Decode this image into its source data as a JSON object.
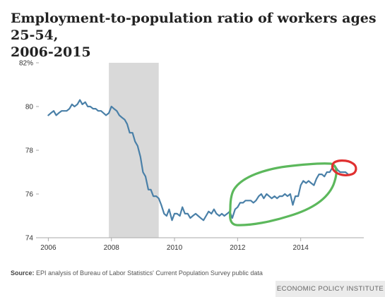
{
  "title": "Employment-to-population ratio of workers ages 25-54,\n2006-2015",
  "source": {
    "label": "Source:",
    "text": "EPI analysis of  Bureau of Labor Statistics' Current Population Survey public data"
  },
  "brand": "ECONOMIC POLICY INSTITUTE",
  "colors": {
    "line": "#4a80a8",
    "recession": "#d9d9d9",
    "axis": "#aaaaaa",
    "annotation_green": "#5cb85c",
    "annotation_red": "#e03030"
  },
  "chart_data": {
    "type": "line",
    "title": "Employment-to-population ratio of workers ages 25-54, 2006-2015",
    "xlabel": "",
    "ylabel": "",
    "xlim": [
      2005.7,
      2016.0
    ],
    "ylim": [
      74,
      82
    ],
    "x_ticks": [
      2006,
      2008,
      2010,
      2012,
      2014
    ],
    "y_ticks": [
      {
        "value": 74,
        "label": "74"
      },
      {
        "value": 76,
        "label": "76"
      },
      {
        "value": 78,
        "label": "78"
      },
      {
        "value": 80,
        "label": "80"
      },
      {
        "value": 82,
        "label": "82%"
      }
    ],
    "grid": false,
    "recession": {
      "start": 2007.92,
      "end": 2009.5
    },
    "series": [
      {
        "name": "",
        "x": [
          2006.0,
          2006.08,
          2006.17,
          2006.25,
          2006.33,
          2006.42,
          2006.5,
          2006.58,
          2006.67,
          2006.75,
          2006.83,
          2006.92,
          2007.0,
          2007.08,
          2007.17,
          2007.25,
          2007.33,
          2007.42,
          2007.5,
          2007.58,
          2007.67,
          2007.75,
          2007.83,
          2007.92,
          2008.0,
          2008.08,
          2008.17,
          2008.25,
          2008.33,
          2008.42,
          2008.5,
          2008.58,
          2008.67,
          2008.75,
          2008.83,
          2008.92,
          2009.0,
          2009.08,
          2009.17,
          2009.25,
          2009.33,
          2009.42,
          2009.5,
          2009.58,
          2009.67,
          2009.75,
          2009.83,
          2009.92,
          2010.0,
          2010.08,
          2010.17,
          2010.25,
          2010.33,
          2010.42,
          2010.5,
          2010.58,
          2010.67,
          2010.75,
          2010.83,
          2010.92,
          2011.0,
          2011.08,
          2011.17,
          2011.25,
          2011.33,
          2011.42,
          2011.5,
          2011.58,
          2011.67,
          2011.75,
          2011.83,
          2011.92,
          2012.0,
          2012.08,
          2012.17,
          2012.25,
          2012.33,
          2012.42,
          2012.5,
          2012.58,
          2012.67,
          2012.75,
          2012.83,
          2012.92,
          2013.0,
          2013.08,
          2013.17,
          2013.25,
          2013.33,
          2013.42,
          2013.5,
          2013.58,
          2013.67,
          2013.75,
          2013.83,
          2013.92,
          2014.0,
          2014.08,
          2014.17,
          2014.25,
          2014.33,
          2014.42,
          2014.5,
          2014.58,
          2014.67,
          2014.75,
          2014.83,
          2014.92,
          2015.0,
          2015.08,
          2015.17,
          2015.25,
          2015.33,
          2015.42,
          2015.5
        ],
        "y": [
          79.6,
          79.7,
          79.8,
          79.6,
          79.7,
          79.8,
          79.8,
          79.8,
          79.9,
          80.1,
          80.0,
          80.1,
          80.3,
          80.1,
          80.2,
          80.0,
          80.0,
          79.9,
          79.9,
          79.8,
          79.8,
          79.7,
          79.6,
          79.7,
          80.0,
          79.9,
          79.8,
          79.6,
          79.5,
          79.4,
          79.2,
          78.8,
          78.8,
          78.4,
          78.2,
          77.7,
          77.0,
          76.8,
          76.2,
          76.2,
          75.9,
          75.9,
          75.8,
          75.5,
          75.1,
          75.0,
          75.3,
          74.8,
          75.1,
          75.1,
          75.0,
          75.4,
          75.1,
          75.1,
          74.9,
          75.0,
          75.1,
          75.0,
          74.9,
          74.8,
          75.0,
          75.2,
          75.1,
          75.3,
          75.1,
          75.0,
          75.1,
          75.0,
          75.1,
          75.2,
          74.9,
          75.3,
          75.4,
          75.6,
          75.6,
          75.7,
          75.7,
          75.7,
          75.6,
          75.7,
          75.9,
          76.0,
          75.8,
          76.0,
          75.9,
          75.8,
          75.9,
          75.8,
          75.9,
          75.9,
          76.0,
          75.9,
          76.0,
          75.5,
          75.9,
          75.9,
          76.4,
          76.6,
          76.5,
          76.6,
          76.5,
          76.4,
          76.7,
          76.9,
          76.9,
          76.8,
          77.0,
          77.0,
          77.2,
          77.3,
          77.1,
          77.0,
          77.0,
          77.0,
          76.9
        ]
      }
    ]
  }
}
